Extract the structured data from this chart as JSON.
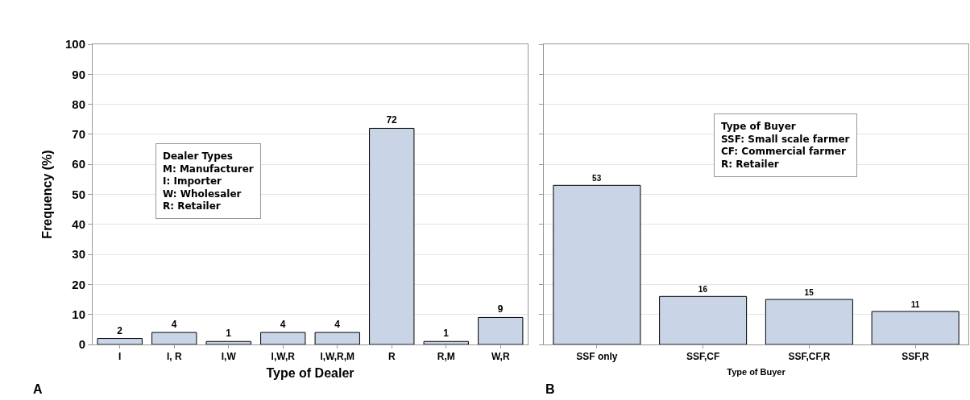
{
  "chart_data": [
    {
      "type": "bar",
      "categories": [
        "I",
        "I, R",
        "I,W",
        "I,W,R",
        "I,W,R,M",
        "R",
        "R,M",
        "W,R"
      ],
      "values": [
        2,
        4,
        1,
        4,
        4,
        72,
        1,
        9
      ],
      "color": "#c9d5e7",
      "ylim": [
        0,
        100
      ],
      "yticks": [
        0,
        10,
        20,
        30,
        40,
        50,
        60,
        70,
        80,
        90,
        100
      ],
      "xlabel": "Type of Dealer",
      "ylabel": "Frequency (%)",
      "data_labels": true,
      "grid": "y",
      "annotations": [
        "Dealer Types\nM: Manufacturer\nI: Importer\nW: Wholesaler\nR: Retailer",
        "A"
      ]
    },
    {
      "type": "bar",
      "categories": [
        "SSF only",
        "SSF,CF",
        "SSF,CF,R",
        "SSF,R"
      ],
      "values": [
        53,
        16,
        15,
        11
      ],
      "color": "#c9d5e7",
      "ylim": [
        0,
        100
      ],
      "yticks": [
        0,
        10,
        20,
        30,
        40,
        50,
        60,
        70,
        80,
        90,
        100
      ],
      "xlabel": "Type of Buyer",
      "data_labels": true,
      "grid": "y",
      "tick_labels": "x",
      "annotations": [
        "Type of Buyer\nSSF: Small scale farmer\nCF: Commercial farmer\nR: Retailer",
        "B"
      ]
    }
  ]
}
